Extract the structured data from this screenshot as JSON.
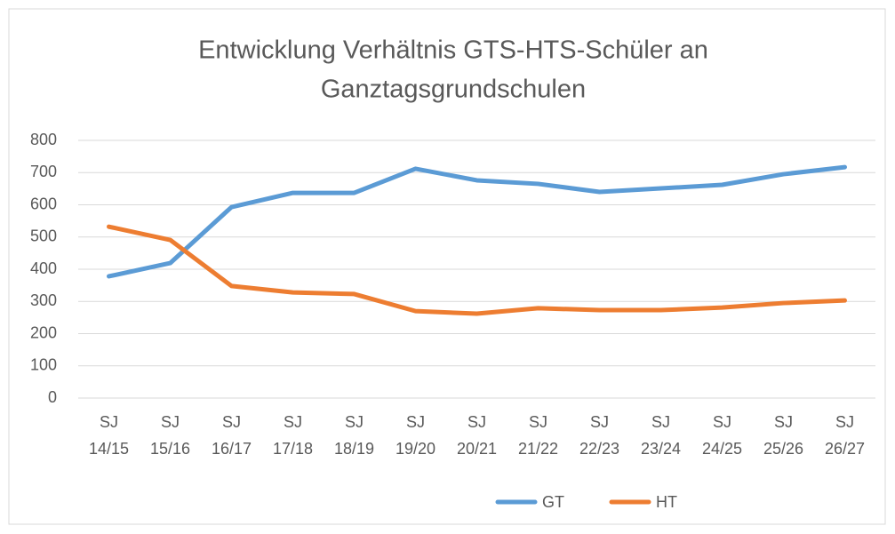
{
  "chart_data": {
    "type": "line",
    "title": [
      "Entwicklung Verhältnis GTS-HTS-Schüler an",
      "Ganztagsgrundschulen"
    ],
    "categories": [
      "SJ 14/15",
      "SJ 15/16",
      "SJ 16/17",
      "SJ 17/18",
      "SJ 18/19",
      "SJ 19/20",
      "SJ 20/21",
      "SJ 21/22",
      "SJ 22/23",
      "SJ 23/24",
      "SJ 24/25",
      "SJ 25/26",
      "SJ 26/27"
    ],
    "series": [
      {
        "name": "GT",
        "color": "#5b9bd5",
        "values": [
          378,
          419,
          593,
          637,
          637,
          712,
          676,
          665,
          640,
          651,
          662,
          695,
          717
        ]
      },
      {
        "name": "HT",
        "color": "#ed7d31",
        "values": [
          532,
          491,
          348,
          328,
          323,
          270,
          262,
          279,
          273,
          273,
          281,
          295,
          303
        ]
      }
    ],
    "ylim": [
      0,
      800
    ],
    "yticks": [
      0,
      100,
      200,
      300,
      400,
      500,
      600,
      700,
      800
    ],
    "grid": true,
    "legend": "bottom"
  }
}
